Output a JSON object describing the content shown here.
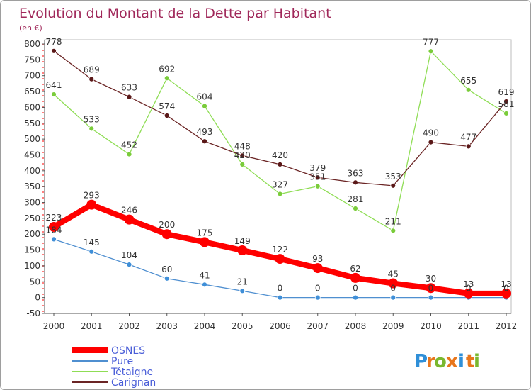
{
  "chart_data": {
    "type": "line",
    "title": "Evolution du Montant de la Dette par Habitant",
    "unit_label": "(en €)",
    "x": [
      "2000",
      "2001",
      "2002",
      "2003",
      "2004",
      "2005",
      "2006",
      "2007",
      "2008",
      "2009",
      "2010",
      "2011",
      "2012"
    ],
    "ylim": [
      -50,
      800
    ],
    "yticks": [
      -50,
      0,
      50,
      100,
      150,
      200,
      250,
      300,
      350,
      400,
      450,
      500,
      550,
      600,
      650,
      700,
      750,
      800
    ],
    "grid": false,
    "legend_position": "bottom-left",
    "series": [
      {
        "name": "OSNES",
        "color": "#ff0000",
        "line_width": 8,
        "marker_radius": 7,
        "values": [
          223,
          293,
          246,
          200,
          175,
          149,
          122,
          93,
          62,
          45,
          30,
          13,
          13
        ]
      },
      {
        "name": "Pure",
        "color": "#4f8fd0",
        "marker_fill": "#3f8fd8",
        "line_width": 1.3,
        "marker_radius": 3.5,
        "values": [
          184,
          145,
          104,
          60,
          41,
          21,
          0,
          0,
          0,
          0,
          0,
          0,
          0
        ]
      },
      {
        "name": "Tétaigne",
        "color": "#8fdd55",
        "marker_fill": "#7acc3a",
        "line_width": 1.3,
        "marker_radius": 3.5,
        "values": [
          641,
          533,
          452,
          692,
          604,
          420,
          327,
          351,
          281,
          211,
          777,
          655,
          581
        ]
      },
      {
        "name": "Carignan",
        "color": "#6b2525",
        "marker_fill": "#5a1818",
        "line_width": 1.3,
        "marker_radius": 3.5,
        "values": [
          778,
          689,
          633,
          574,
          493,
          448,
          420,
          379,
          363,
          353,
          490,
          477,
          619
        ]
      }
    ]
  },
  "logo": {
    "letters": [
      "P",
      "r",
      "o",
      "x",
      "i",
      "t",
      "i"
    ],
    "colors": [
      "#2f8fd8",
      "#e8761c",
      "#7ab82f",
      "#e8761c",
      "#2f8fd8",
      "#e8761c",
      "#7ab82f"
    ]
  }
}
